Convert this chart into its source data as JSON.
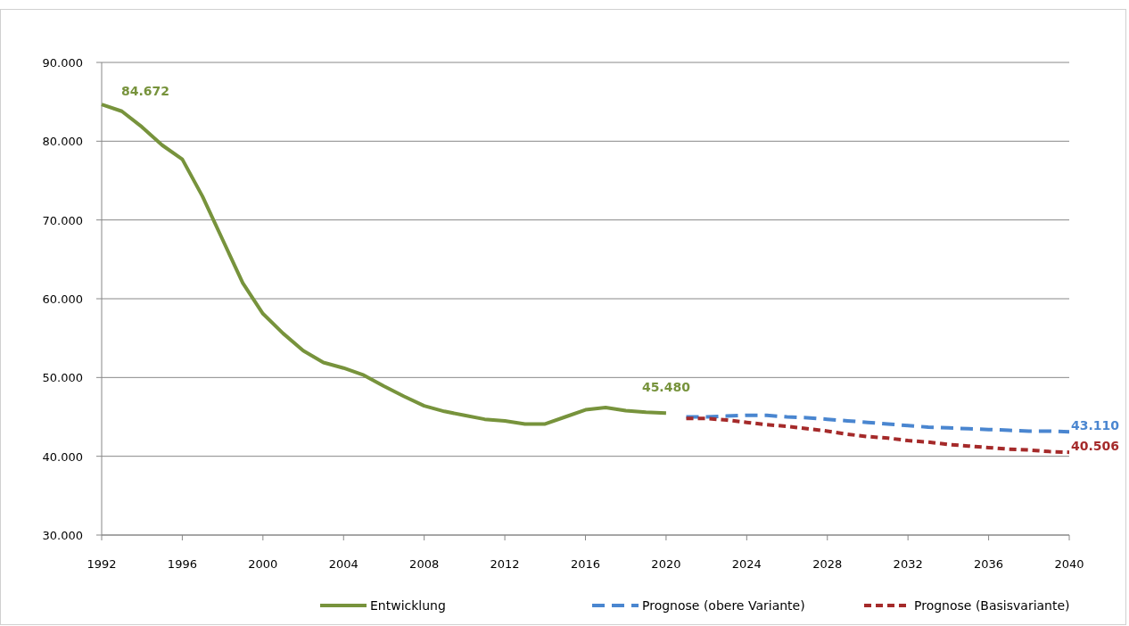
{
  "chart_data": {
    "type": "line",
    "xlim": [
      1992,
      2040
    ],
    "xticks": [
      1992,
      1996,
      2000,
      2004,
      2008,
      2012,
      2016,
      2020,
      2024,
      2028,
      2032,
      2036,
      2040
    ],
    "ylim": [
      30000,
      90000
    ],
    "yticks": [
      {
        "value": 30000,
        "label": "30.000"
      },
      {
        "value": 40000,
        "label": "40.000"
      },
      {
        "value": 50000,
        "label": "50.000"
      },
      {
        "value": 60000,
        "label": "60.000"
      },
      {
        "value": 70000,
        "label": "70.000"
      },
      {
        "value": 80000,
        "label": "80.000"
      },
      {
        "value": 90000,
        "label": "90.000"
      }
    ],
    "grid": "y",
    "legend": "bottom",
    "series": [
      {
        "name": "Entwicklung",
        "color": "#77933c",
        "line_style": "solid",
        "x": [
          1992,
          1993,
          1994,
          1995,
          1996,
          1997,
          1998,
          1999,
          2000,
          2001,
          2002,
          2003,
          2004,
          2005,
          2006,
          2007,
          2008,
          2009,
          2010,
          2011,
          2012,
          2013,
          2014,
          2015,
          2016,
          2017,
          2018,
          2019,
          2020
        ],
        "values": [
          84672,
          83800,
          81800,
          79500,
          77700,
          73000,
          67500,
          62000,
          58100,
          55600,
          53400,
          51900,
          51200,
          50300,
          48900,
          47600,
          46400,
          45700,
          45200,
          44700,
          44500,
          44100,
          44100,
          45000,
          45900,
          46200,
          45800,
          45600,
          45480
        ]
      },
      {
        "name": "Prognose (obere Variante)",
        "color": "#4a86d0",
        "line_style": "dashed",
        "x": [
          2021,
          2022,
          2023,
          2024,
          2025,
          2026,
          2027,
          2028,
          2029,
          2030,
          2031,
          2032,
          2033,
          2034,
          2035,
          2036,
          2037,
          2038,
          2039,
          2040
        ],
        "values": [
          45000,
          45000,
          45100,
          45200,
          45200,
          45000,
          44900,
          44700,
          44500,
          44300,
          44100,
          43900,
          43700,
          43600,
          43500,
          43400,
          43300,
          43200,
          43200,
          43110
        ]
      },
      {
        "name": "Prognose (Basisvariante)",
        "color": "#a52a2a",
        "line_style": "dotted",
        "x": [
          2021,
          2022,
          2023,
          2024,
          2025,
          2026,
          2027,
          2028,
          2029,
          2030,
          2031,
          2032,
          2033,
          2034,
          2035,
          2036,
          2037,
          2038,
          2039,
          2040
        ],
        "values": [
          44800,
          44800,
          44600,
          44300,
          44000,
          43800,
          43500,
          43200,
          42800,
          42500,
          42300,
          42000,
          41800,
          41500,
          41300,
          41100,
          40900,
          40800,
          40600,
          40506
        ]
      }
    ],
    "annotations": [
      {
        "text": "84.672",
        "x": 1992,
        "y": 84672
      },
      {
        "text": "45.480",
        "x": 2020,
        "y": 45480
      },
      {
        "text": "43.110",
        "x": 2040,
        "y": 43110
      },
      {
        "text": "40.506",
        "x": 2040,
        "y": 40506
      }
    ]
  }
}
